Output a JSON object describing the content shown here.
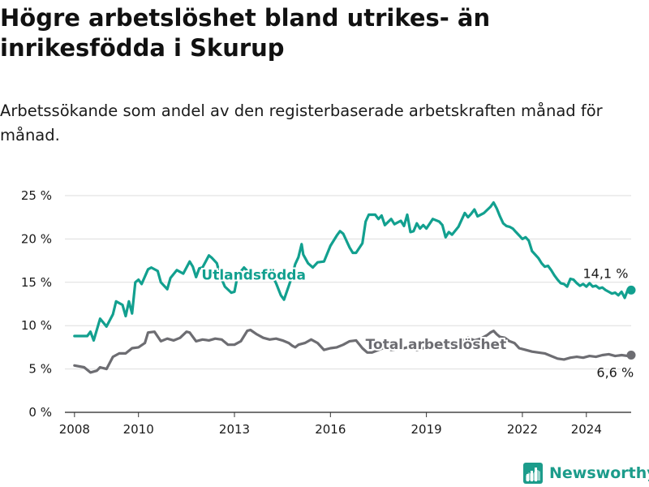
{
  "title": "Högre arbetslöshet bland utrikes- än inrikesfödda i Skurup",
  "subtitle": "Arbetssökande som andel av den registerbaserade arbetskraften månad för månad.",
  "brand": {
    "name": "Newsworthy",
    "logo_icon": "newsworthy-logo-icon"
  },
  "colors": {
    "utlandsfodda": "#12a08f",
    "total": "#6d6d72",
    "grid": "#dddddd",
    "axis": "#333333",
    "text": "#1a1a1a"
  },
  "chart_data": {
    "type": "line",
    "ylim": [
      0,
      25
    ],
    "xlim": [
      2007.7,
      2025.4
    ],
    "yticks": [
      0,
      5,
      10,
      15,
      20,
      25
    ],
    "ytick_labels": [
      "0 %",
      "5 %",
      "10 %",
      "15 %",
      "20 %",
      "25 %"
    ],
    "xticks": [
      2008,
      2010,
      2013,
      2016,
      2019,
      2022,
      2024
    ],
    "xtick_labels": [
      "2008",
      "2010",
      "2013",
      "2016",
      "2019",
      "2022",
      "2024"
    ],
    "series": [
      {
        "name": "Utlandsfödda",
        "label": "Utlandsfödda",
        "end_label": "14,1 %",
        "end_value": 14.1,
        "points": [
          [
            2008.0,
            8.8
          ],
          [
            2008.4,
            8.8
          ],
          [
            2008.5,
            9.3
          ],
          [
            2008.6,
            8.3
          ],
          [
            2008.8,
            10.8
          ],
          [
            2009.0,
            9.9
          ],
          [
            2009.2,
            11.3
          ],
          [
            2009.3,
            12.8
          ],
          [
            2009.5,
            12.4
          ],
          [
            2009.6,
            11.1
          ],
          [
            2009.7,
            12.8
          ],
          [
            2009.8,
            11.4
          ],
          [
            2009.9,
            15.0
          ],
          [
            2010.0,
            15.3
          ],
          [
            2010.1,
            14.8
          ],
          [
            2010.3,
            16.5
          ],
          [
            2010.4,
            16.7
          ],
          [
            2010.6,
            16.3
          ],
          [
            2010.7,
            15.0
          ],
          [
            2010.9,
            14.2
          ],
          [
            2011.0,
            15.5
          ],
          [
            2011.2,
            16.4
          ],
          [
            2011.4,
            16.0
          ],
          [
            2011.6,
            17.4
          ],
          [
            2011.7,
            16.8
          ],
          [
            2011.8,
            15.6
          ],
          [
            2011.9,
            16.6
          ],
          [
            2012.0,
            16.7
          ],
          [
            2012.2,
            18.1
          ],
          [
            2012.3,
            17.8
          ],
          [
            2012.45,
            17.2
          ],
          [
            2012.55,
            15.8
          ],
          [
            2012.7,
            14.5
          ],
          [
            2012.9,
            13.8
          ],
          [
            2013.0,
            13.9
          ],
          [
            2013.1,
            15.8
          ],
          [
            2013.3,
            16.7
          ],
          [
            2013.4,
            16.3
          ],
          [
            2013.6,
            16.0
          ],
          [
            2013.7,
            15.4
          ],
          [
            2013.9,
            16.1
          ],
          [
            2014.1,
            16.3
          ],
          [
            2014.3,
            14.9
          ],
          [
            2014.45,
            13.5
          ],
          [
            2014.55,
            13.0
          ],
          [
            2014.7,
            14.6
          ],
          [
            2014.8,
            15.7
          ],
          [
            2014.9,
            17.1
          ],
          [
            2015.0,
            17.9
          ],
          [
            2015.1,
            19.4
          ],
          [
            2015.15,
            18.2
          ],
          [
            2015.3,
            17.2
          ],
          [
            2015.45,
            16.7
          ],
          [
            2015.6,
            17.3
          ],
          [
            2015.8,
            17.4
          ],
          [
            2016.0,
            19.2
          ],
          [
            2016.2,
            20.4
          ],
          [
            2016.3,
            20.9
          ],
          [
            2016.4,
            20.6
          ],
          [
            2016.6,
            19.0
          ],
          [
            2016.7,
            18.4
          ],
          [
            2016.8,
            18.4
          ],
          [
            2017.0,
            19.5
          ],
          [
            2017.1,
            22.0
          ],
          [
            2017.2,
            22.8
          ],
          [
            2017.4,
            22.8
          ],
          [
            2017.5,
            22.3
          ],
          [
            2017.6,
            22.7
          ],
          [
            2017.7,
            21.6
          ],
          [
            2017.9,
            22.3
          ],
          [
            2018.0,
            21.7
          ],
          [
            2018.2,
            22.1
          ],
          [
            2018.3,
            21.5
          ],
          [
            2018.4,
            22.8
          ],
          [
            2018.5,
            20.8
          ],
          [
            2018.6,
            20.9
          ],
          [
            2018.7,
            21.8
          ],
          [
            2018.8,
            21.2
          ],
          [
            2018.9,
            21.6
          ],
          [
            2019.0,
            21.2
          ],
          [
            2019.2,
            22.3
          ],
          [
            2019.4,
            22.0
          ],
          [
            2019.5,
            21.6
          ],
          [
            2019.6,
            20.2
          ],
          [
            2019.7,
            20.8
          ],
          [
            2019.8,
            20.5
          ],
          [
            2020.0,
            21.4
          ],
          [
            2020.2,
            23.0
          ],
          [
            2020.3,
            22.5
          ],
          [
            2020.4,
            22.9
          ],
          [
            2020.5,
            23.4
          ],
          [
            2020.6,
            22.6
          ],
          [
            2020.8,
            23.0
          ],
          [
            2021.0,
            23.7
          ],
          [
            2021.1,
            24.2
          ],
          [
            2021.2,
            23.5
          ],
          [
            2021.3,
            22.6
          ],
          [
            2021.4,
            21.8
          ],
          [
            2021.5,
            21.5
          ],
          [
            2021.6,
            21.4
          ],
          [
            2021.7,
            21.2
          ],
          [
            2021.8,
            20.8
          ],
          [
            2021.9,
            20.4
          ],
          [
            2022.0,
            20.0
          ],
          [
            2022.1,
            20.2
          ],
          [
            2022.2,
            19.8
          ],
          [
            2022.3,
            18.6
          ],
          [
            2022.4,
            18.2
          ],
          [
            2022.5,
            17.8
          ],
          [
            2022.6,
            17.2
          ],
          [
            2022.7,
            16.8
          ],
          [
            2022.8,
            16.9
          ],
          [
            2022.9,
            16.4
          ],
          [
            2023.0,
            15.8
          ],
          [
            2023.1,
            15.3
          ],
          [
            2023.2,
            14.9
          ],
          [
            2023.3,
            14.8
          ],
          [
            2023.4,
            14.5
          ],
          [
            2023.5,
            15.4
          ],
          [
            2023.6,
            15.3
          ],
          [
            2023.7,
            14.9
          ],
          [
            2023.8,
            14.6
          ],
          [
            2023.9,
            14.8
          ],
          [
            2024.0,
            14.5
          ],
          [
            2024.1,
            14.9
          ],
          [
            2024.2,
            14.5
          ],
          [
            2024.3,
            14.6
          ],
          [
            2024.4,
            14.3
          ],
          [
            2024.5,
            14.4
          ],
          [
            2024.6,
            14.1
          ],
          [
            2024.7,
            13.9
          ],
          [
            2024.8,
            13.7
          ],
          [
            2024.9,
            13.8
          ],
          [
            2025.0,
            13.5
          ],
          [
            2025.1,
            13.9
          ],
          [
            2025.2,
            13.2
          ],
          [
            2025.3,
            14.2
          ],
          [
            2025.4,
            14.1
          ]
        ]
      },
      {
        "name": "Total arbetslöshet",
        "label": "Total arbetslöshet",
        "end_label": "6,6 %",
        "end_value": 6.6,
        "points": [
          [
            2008.0,
            5.4
          ],
          [
            2008.3,
            5.2
          ],
          [
            2008.5,
            4.6
          ],
          [
            2008.7,
            4.8
          ],
          [
            2008.8,
            5.2
          ],
          [
            2009.0,
            5.0
          ],
          [
            2009.2,
            6.4
          ],
          [
            2009.4,
            6.8
          ],
          [
            2009.6,
            6.8
          ],
          [
            2009.8,
            7.4
          ],
          [
            2010.0,
            7.5
          ],
          [
            2010.2,
            8.0
          ],
          [
            2010.3,
            9.2
          ],
          [
            2010.5,
            9.3
          ],
          [
            2010.7,
            8.2
          ],
          [
            2010.9,
            8.5
          ],
          [
            2011.1,
            8.3
          ],
          [
            2011.3,
            8.6
          ],
          [
            2011.5,
            9.3
          ],
          [
            2011.6,
            9.2
          ],
          [
            2011.8,
            8.2
          ],
          [
            2012.0,
            8.4
          ],
          [
            2012.2,
            8.3
          ],
          [
            2012.4,
            8.5
          ],
          [
            2012.6,
            8.4
          ],
          [
            2012.8,
            7.8
          ],
          [
            2013.0,
            7.8
          ],
          [
            2013.2,
            8.2
          ],
          [
            2013.4,
            9.4
          ],
          [
            2013.5,
            9.5
          ],
          [
            2013.7,
            9.0
          ],
          [
            2013.9,
            8.6
          ],
          [
            2014.1,
            8.4
          ],
          [
            2014.3,
            8.5
          ],
          [
            2014.5,
            8.3
          ],
          [
            2014.7,
            8.0
          ],
          [
            2014.8,
            7.7
          ],
          [
            2014.9,
            7.5
          ],
          [
            2015.0,
            7.8
          ],
          [
            2015.2,
            8.0
          ],
          [
            2015.4,
            8.4
          ],
          [
            2015.6,
            8.0
          ],
          [
            2015.8,
            7.2
          ],
          [
            2016.0,
            7.4
          ],
          [
            2016.2,
            7.5
          ],
          [
            2016.4,
            7.8
          ],
          [
            2016.6,
            8.2
          ],
          [
            2016.8,
            8.3
          ],
          [
            2017.0,
            7.4
          ],
          [
            2017.15,
            6.9
          ],
          [
            2017.3,
            6.9
          ],
          [
            2017.5,
            7.2
          ],
          [
            2017.7,
            7.5
          ],
          [
            2017.9,
            7.2
          ],
          [
            2018.1,
            7.3
          ],
          [
            2018.3,
            7.4
          ],
          [
            2018.5,
            7.6
          ],
          [
            2018.7,
            7.2
          ],
          [
            2018.9,
            7.4
          ],
          [
            2019.1,
            7.6
          ],
          [
            2019.3,
            7.9
          ],
          [
            2019.5,
            7.6
          ],
          [
            2019.7,
            7.4
          ],
          [
            2019.9,
            7.6
          ],
          [
            2020.1,
            8.2
          ],
          [
            2020.3,
            8.6
          ],
          [
            2020.5,
            8.3
          ],
          [
            2020.7,
            8.5
          ],
          [
            2020.9,
            8.9
          ],
          [
            2021.0,
            9.2
          ],
          [
            2021.1,
            9.4
          ],
          [
            2021.2,
            9.0
          ],
          [
            2021.3,
            8.7
          ],
          [
            2021.45,
            8.6
          ],
          [
            2021.6,
            8.2
          ],
          [
            2021.75,
            8.0
          ],
          [
            2021.9,
            7.4
          ],
          [
            2022.1,
            7.2
          ],
          [
            2022.3,
            7.0
          ],
          [
            2022.5,
            6.9
          ],
          [
            2022.7,
            6.8
          ],
          [
            2022.9,
            6.5
          ],
          [
            2023.1,
            6.2
          ],
          [
            2023.3,
            6.1
          ],
          [
            2023.5,
            6.3
          ],
          [
            2023.7,
            6.4
          ],
          [
            2023.9,
            6.3
          ],
          [
            2024.1,
            6.5
          ],
          [
            2024.3,
            6.4
          ],
          [
            2024.5,
            6.6
          ],
          [
            2024.7,
            6.7
          ],
          [
            2024.9,
            6.5
          ],
          [
            2025.1,
            6.6
          ],
          [
            2025.3,
            6.5
          ],
          [
            2025.4,
            6.6
          ]
        ]
      }
    ]
  }
}
